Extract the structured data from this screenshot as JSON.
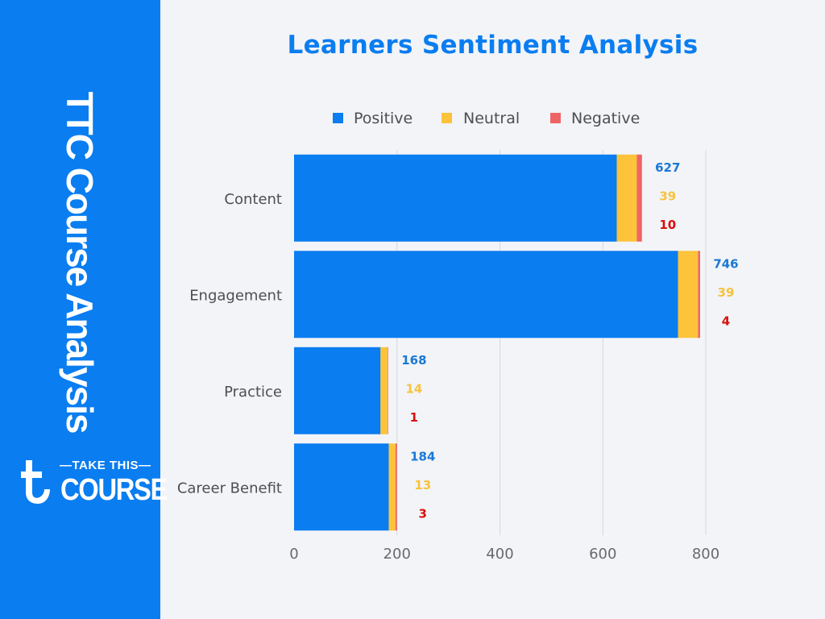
{
  "sidebar": {
    "title": "TTC Course Analysis",
    "logo_top": "—TAKE THIS—",
    "logo_bottom": "COURSE"
  },
  "colors": {
    "sidebar": "#0a7df0",
    "positive": "#0a7df0",
    "neutral": "#fcc33b",
    "negative": "#ef6464",
    "positive_label": "#1a78d6",
    "neutral_label": "#f7c23e",
    "negative_label": "#d80f0f"
  },
  "chart_data": {
    "type": "bar",
    "orientation": "horizontal",
    "stacked": true,
    "title": "Learners Sentiment Analysis",
    "categories": [
      "Content",
      "Engagement",
      "Practice",
      "Career Benefit"
    ],
    "series": [
      {
        "name": "Positive",
        "values": [
          627,
          746,
          168,
          184
        ]
      },
      {
        "name": "Neutral",
        "values": [
          39,
          39,
          14,
          13
        ]
      },
      {
        "name": "Negative",
        "values": [
          10,
          4,
          1,
          3
        ]
      }
    ],
    "xlim": [
      0,
      800
    ],
    "xticks": [
      0,
      200,
      400,
      600,
      800
    ],
    "grid": true,
    "legend": "top"
  }
}
